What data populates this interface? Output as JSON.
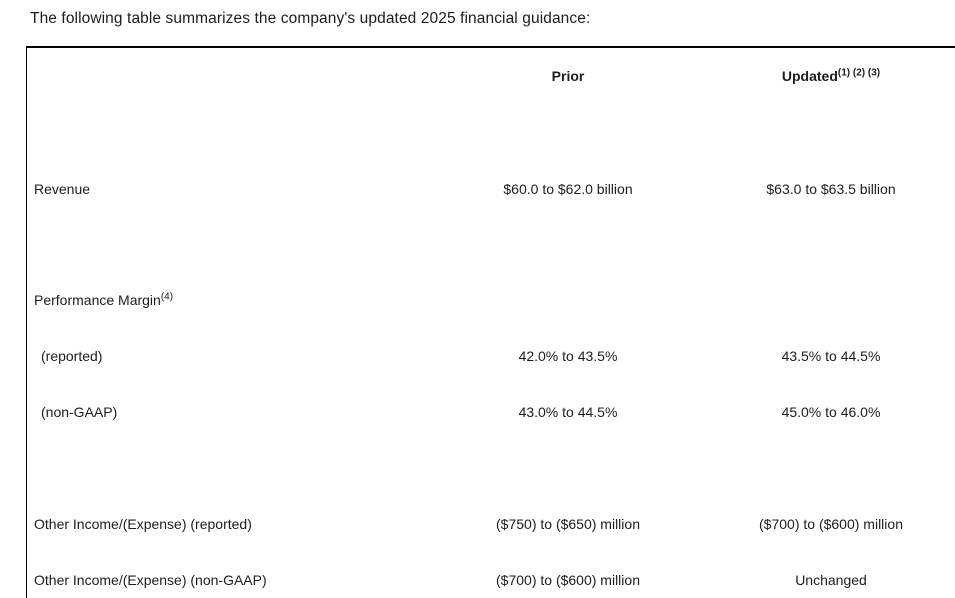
{
  "page": {
    "intro_text": "The following table summarizes the company's updated 2025 financial guidance:"
  },
  "table": {
    "header": {
      "prior": "Prior",
      "updated": "Updated",
      "updated_superscript": "(1) (2) (3)"
    },
    "rows": [
      {
        "label": "Revenue",
        "prior": "$60.0 to $62.0 billion",
        "updated": "$63.0 to $63.5 billion"
      },
      {
        "label": "Performance Margin",
        "label_superscript": "(4)",
        "prior": "",
        "updated": ""
      },
      {
        "label": "(reported)",
        "prior": "42.0% to 43.5%",
        "updated": "43.5% to 44.5%"
      },
      {
        "label": "(non-GAAP)",
        "prior": "43.0% to 44.5%",
        "updated": "45.0% to 46.0%"
      },
      {
        "label": "Other Income/(Expense) (reported)",
        "prior": "($750) to ($650) million",
        "updated": "($700) to ($600) million"
      },
      {
        "label": "Other Income/(Expense) (non-GAAP)",
        "prior": "($700) to ($600) million",
        "updated": "Unchanged"
      }
    ]
  },
  "colors": {
    "text": "#1d1d1d",
    "border": "#000000",
    "background": "#ffffff"
  }
}
